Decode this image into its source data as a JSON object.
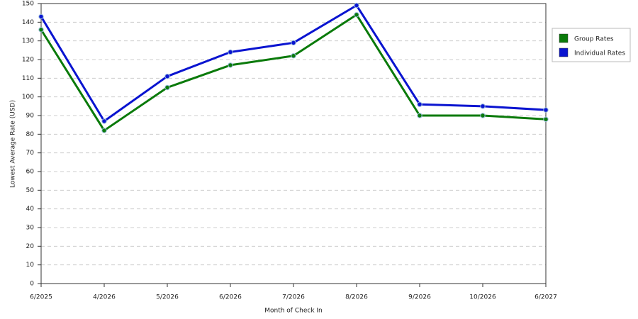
{
  "chart_data": {
    "type": "line",
    "x_label": "Month of Check In",
    "y_label": "Lowest Average Rate (USD)",
    "categories": [
      "6/2025",
      "4/2026",
      "5/2026",
      "6/2026",
      "7/2026",
      "8/2026",
      "9/2026",
      "10/2026",
      "6/2027"
    ],
    "series": [
      {
        "name": "Group Rates",
        "color": "#0a7a0a",
        "values": [
          136,
          82,
          105,
          117,
          122,
          144,
          90,
          90,
          88
        ]
      },
      {
        "name": "Individual Rates",
        "color": "#0a14d0",
        "values": [
          143,
          87,
          111,
          124,
          129,
          149,
          96,
          95,
          93
        ]
      }
    ],
    "ylim": [
      0,
      150
    ],
    "yticks": [
      0,
      10,
      20,
      30,
      40,
      50,
      60,
      70,
      80,
      90,
      100,
      110,
      120,
      130,
      140,
      150
    ],
    "grid": true,
    "legend": "upper right"
  }
}
